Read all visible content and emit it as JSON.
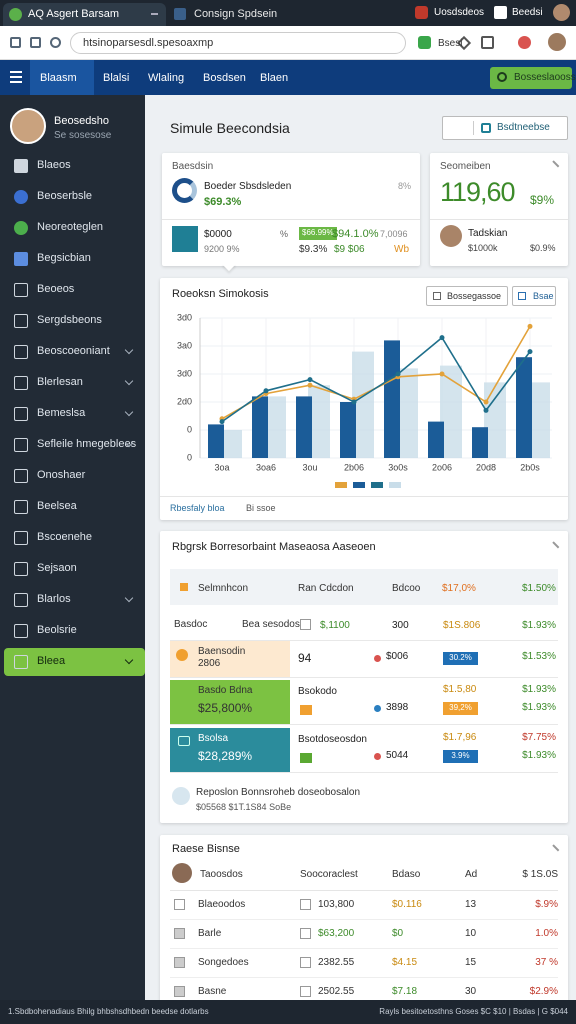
{
  "browser": {
    "tabs": [
      "AQ Asgert Barsam",
      "Consign Spdsein"
    ],
    "profiles": [
      "Uosdsdeos",
      "Beedsi"
    ],
    "url": "htsinoparsesdl.spesoaxmp",
    "toolbar": "Bsesi"
  },
  "nav": {
    "items": [
      "Blaasm",
      "Blalsi",
      "Wlaling",
      "Bosdsen",
      "Blaen"
    ],
    "action": "Bosseslaooss"
  },
  "sidebar": {
    "user": "Beosedsho",
    "role": "Se sosesose",
    "items": [
      {
        "label": "Blaeos",
        "chevron": false
      },
      {
        "label": "Beoserbsle",
        "chevron": false
      },
      {
        "label": "Neoreoteglen",
        "chevron": false
      },
      {
        "label": "Begsicbian",
        "chevron": false
      },
      {
        "label": "Beoeos",
        "chevron": false
      },
      {
        "label": "Sergdsbeons",
        "chevron": false
      },
      {
        "label": "Beoscoeoniant",
        "chevron": true
      },
      {
        "label": "Blerlesan",
        "chevron": true
      },
      {
        "label": "Bemeslsa",
        "chevron": true
      },
      {
        "label": "Sefleile hmegeblees",
        "chevron": true
      },
      {
        "label": "Onoshaer",
        "chevron": false
      },
      {
        "label": "Beelsea",
        "chevron": false
      },
      {
        "label": "Bscoenehe",
        "chevron": false
      },
      {
        "label": "Sejsaon",
        "chevron": false
      },
      {
        "label": "Blarlos",
        "chevron": true
      },
      {
        "label": "Beolsrie",
        "chevron": false
      },
      {
        "label": "Bleea",
        "chevron": true,
        "active": true
      }
    ]
  },
  "page": {
    "title": "Simule Beecondsia",
    "button": "Bsdtneebse"
  },
  "summary": {
    "title": "Baesdsin",
    "name": "Boeder Sbsdsleden",
    "value": "$69.3%",
    "code": "8%",
    "box_label": "$0000",
    "box_sub": "9200 9%",
    "sign": "%",
    "badge": "$66.99%",
    "amount": "$94.1.0%",
    "extra": "7,0096",
    "amount2": "$9.3%",
    "sub2": "$9 $06",
    "extra2": "Wb"
  },
  "kpi": {
    "title": "Seomeiben",
    "value": "119,60",
    "change": "$9%",
    "person": "Tadskian",
    "person_sub": "$1000k",
    "person_pct": "$0.9%"
  },
  "chart_data": {
    "type": "bar",
    "title": "Roeoksn Simokosis",
    "buttons": [
      "Bossegassoe",
      "Bsae"
    ],
    "categories": [
      "3oa",
      "3oa6",
      "3ou",
      "2b06",
      "3o0s",
      "2o06",
      "20d8",
      "2b0s"
    ],
    "series": [
      {
        "type": "line",
        "color": "#e3a23a",
        "values": [
          140,
          230,
          260,
          210,
          290,
          300,
          200,
          470
        ]
      },
      {
        "type": "bar",
        "color": "#1b5c98",
        "values": [
          120,
          220,
          220,
          200,
          420,
          130,
          110,
          360
        ]
      },
      {
        "type": "line",
        "color": "#1f6f8b",
        "values": [
          130,
          240,
          280,
          200,
          300,
          430,
          170,
          380
        ]
      },
      {
        "type": "bar",
        "color": "#c9dde9",
        "values": [
          100,
          220,
          260,
          380,
          320,
          330,
          270,
          270
        ]
      }
    ],
    "ylim": [
      0,
      500
    ],
    "yticks": [
      0,
      {
        "value": 100,
        "label": "0"
      },
      {
        "value": 200,
        "label": "2d0"
      },
      {
        "value": 300,
        "label": "3d0"
      },
      {
        "value": 400,
        "label": "3a0"
      },
      {
        "value": 500,
        "label": "3d0"
      }
    ],
    "grid": true
  },
  "chart_footer": [
    "Rbesfaly bloa",
    "Bi ssoe"
  ],
  "table": {
    "title": "Rbgrsk Borresorbaint Maseaosa Aaseoen",
    "header": [
      "Selmnhcon",
      "Ran Cdcdon",
      "Bdcoo",
      "$17,0%",
      "$1.50%"
    ],
    "rows": [
      {
        "style": "plain",
        "label": [
          "Basdoc",
          "Bea sesodos"
        ],
        "mark": "check",
        "mid": "$,1100",
        "dot": null,
        "count": "300",
        "pct": "$1S.806",
        "badge": null,
        "end": [
          "$1.93%"
        ]
      },
      {
        "style": "peach",
        "label": [
          "Baensodin",
          "2806"
        ],
        "mark": null,
        "mid": "94",
        "dot": "#d9534f",
        "count": "$006",
        "pct": null,
        "badge": "30.2%",
        "badge_color": "#1f6fb5",
        "end": [
          "$1.53%"
        ]
      },
      {
        "style": "green",
        "label": [
          "Basdo Bdna",
          "$25,800%"
        ],
        "mark": "#f0a030",
        "mid": "Bsokodo",
        "dot": "#2a7fc0",
        "count": "3898",
        "pct": "$1.5,80",
        "badge": "39,2%",
        "badge_color": "#f0a030",
        "end": [
          "$1.93%",
          "$1.93%"
        ]
      },
      {
        "style": "teal",
        "label": [
          "Bsolsa",
          "$28,289%"
        ],
        "mark": "#5aa832",
        "mid": "Bsotdoseosdon",
        "dot": "#d9534f",
        "count": "5044",
        "pct": "$1.7,96",
        "badge": "3.9%",
        "badge_color": "#1f6fb5",
        "end": [
          "$7.75%",
          "$1.93%"
        ]
      }
    ],
    "footer": {
      "text": "Reposlon Bonnsroheb doseobosalon",
      "sub": "$05568 $1T.1S84 SoBe"
    }
  },
  "list": {
    "title": "Raese Bisnse",
    "header": [
      "Taoosdos",
      "Soocoraclest",
      "Bdaso",
      "Ad",
      "$ 1S.0S"
    ],
    "rows": [
      [
        "Blaeoodos",
        "103,800",
        "$0.116",
        "13",
        "$.9%"
      ],
      [
        "Barle",
        "$63,200",
        "$0",
        "10",
        "1.0%"
      ],
      [
        "Songedoes",
        "2382.55",
        "$4.15",
        "15",
        "37 %"
      ],
      [
        "Basne",
        "2502.55",
        "$7.18",
        "30",
        "$2.9%"
      ]
    ]
  },
  "status": {
    "left": "1.Sbdbohenadiaus Bhilg bhbshsdhbedn beedse dotlarbs",
    "right": "Rayls besitoetosthns Goses $C $10 | Bsdas | G $044"
  }
}
